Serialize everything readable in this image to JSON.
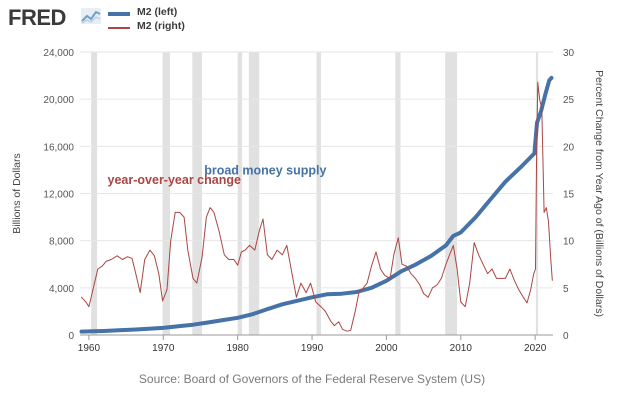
{
  "header": {
    "logo_text": "FRED",
    "logo_icon": "line-chart-icon",
    "legend": [
      {
        "label": "M2 (left)",
        "color": "#4572a7"
      },
      {
        "label": "M2 (right)",
        "color": "#aa4643"
      }
    ]
  },
  "source": "Source: Board of Governors of the Federal Reserve System (US)",
  "chart_data": {
    "type": "line",
    "ylabel": "Billions of Dollars",
    "y2label": "Percent Change from Year Ago of (Billions of Dollars)",
    "xlim": [
      1958.8,
      2022.4
    ],
    "ylim": [
      0,
      24000
    ],
    "y2lim": [
      0,
      30
    ],
    "x_ticks": [
      "1960",
      "1970",
      "1980",
      "1990",
      "2000",
      "2010",
      "2020"
    ],
    "y_ticks": [
      "0",
      "4,000",
      "8,000",
      "12,000",
      "16,000",
      "20,000",
      "24,000"
    ],
    "y2_ticks": [
      "0",
      "5",
      "10",
      "15",
      "20",
      "25",
      "30"
    ],
    "grid": true,
    "recessions": [
      [
        1960.3,
        1961.1
      ],
      [
        1969.9,
        1970.9
      ],
      [
        1973.9,
        1975.2
      ],
      [
        1980.0,
        1980.6
      ],
      [
        1981.5,
        1982.9
      ],
      [
        1990.6,
        1991.2
      ],
      [
        2001.2,
        2001.9
      ],
      [
        2007.9,
        2009.5
      ],
      [
        2020.1,
        2020.4
      ]
    ],
    "annotations": [
      {
        "text": "year-over-year change",
        "x": 1962.5,
        "y": 12800,
        "color": "#aa4643"
      },
      {
        "text": "broad money supply",
        "x": 1975.5,
        "y": 13600,
        "color": "#4572a7"
      }
    ],
    "series": [
      {
        "name": "M2 (left)",
        "axis": "left",
        "color": "#4572a7",
        "points": [
          [
            1959.0,
            290
          ],
          [
            1960,
            305
          ],
          [
            1962,
            340
          ],
          [
            1964,
            400
          ],
          [
            1966,
            460
          ],
          [
            1968,
            530
          ],
          [
            1970,
            600
          ],
          [
            1972,
            740
          ],
          [
            1974,
            870
          ],
          [
            1976,
            1060
          ],
          [
            1978,
            1260
          ],
          [
            1980,
            1460
          ],
          [
            1982,
            1760
          ],
          [
            1984,
            2200
          ],
          [
            1986,
            2600
          ],
          [
            1988,
            2900
          ],
          [
            1990,
            3200
          ],
          [
            1992,
            3450
          ],
          [
            1994,
            3500
          ],
          [
            1996,
            3650
          ],
          [
            1998,
            4000
          ],
          [
            2000,
            4600
          ],
          [
            2002,
            5400
          ],
          [
            2004,
            6000
          ],
          [
            2006,
            6700
          ],
          [
            2008,
            7600
          ],
          [
            2009,
            8400
          ],
          [
            2010,
            8700
          ],
          [
            2012,
            10000
          ],
          [
            2014,
            11500
          ],
          [
            2016,
            13000
          ],
          [
            2018,
            14200
          ],
          [
            2019.9,
            15400
          ],
          [
            2020.25,
            18000
          ],
          [
            2020.8,
            19000
          ],
          [
            2021.4,
            20500
          ],
          [
            2021.9,
            21600
          ],
          [
            2022.2,
            21800
          ]
        ]
      },
      {
        "name": "M2 (right)",
        "axis": "right",
        "color": "#aa4643",
        "points": [
          [
            1959.0,
            4.0
          ],
          [
            1959.6,
            3.5
          ],
          [
            1960.0,
            3.0
          ],
          [
            1960.6,
            5.0
          ],
          [
            1961.2,
            7.0
          ],
          [
            1961.8,
            7.3
          ],
          [
            1962.3,
            7.8
          ],
          [
            1963.0,
            8.0
          ],
          [
            1963.8,
            8.4
          ],
          [
            1964.5,
            8.0
          ],
          [
            1965.2,
            8.3
          ],
          [
            1965.8,
            8.1
          ],
          [
            1966.3,
            6.5
          ],
          [
            1966.9,
            4.5
          ],
          [
            1967.5,
            8.0
          ],
          [
            1968.2,
            9.0
          ],
          [
            1968.8,
            8.4
          ],
          [
            1969.4,
            6.5
          ],
          [
            1969.9,
            3.6
          ],
          [
            1970.5,
            4.8
          ],
          [
            1971.0,
            10.0
          ],
          [
            1971.6,
            13.0
          ],
          [
            1972.2,
            13.0
          ],
          [
            1972.8,
            12.5
          ],
          [
            1973.3,
            9.0
          ],
          [
            1974.0,
            6.0
          ],
          [
            1974.5,
            5.5
          ],
          [
            1975.2,
            8.2
          ],
          [
            1975.8,
            12.5
          ],
          [
            1976.3,
            13.5
          ],
          [
            1976.8,
            13.0
          ],
          [
            1977.5,
            11.0
          ],
          [
            1978.2,
            8.5
          ],
          [
            1978.8,
            8.0
          ],
          [
            1979.5,
            8.0
          ],
          [
            1980.0,
            7.4
          ],
          [
            1980.5,
            8.8
          ],
          [
            1981.0,
            9.0
          ],
          [
            1981.6,
            9.5
          ],
          [
            1982.3,
            9.0
          ],
          [
            1982.9,
            11.0
          ],
          [
            1983.4,
            12.3
          ],
          [
            1984.0,
            8.5
          ],
          [
            1984.6,
            8.0
          ],
          [
            1985.3,
            9.0
          ],
          [
            1986.0,
            8.5
          ],
          [
            1986.6,
            9.5
          ],
          [
            1987.3,
            6.5
          ],
          [
            1987.9,
            4.0
          ],
          [
            1988.5,
            5.5
          ],
          [
            1989.2,
            4.5
          ],
          [
            1989.8,
            5.5
          ],
          [
            1990.5,
            3.5
          ],
          [
            1991.2,
            3.0
          ],
          [
            1991.8,
            2.5
          ],
          [
            1992.5,
            1.5
          ],
          [
            1993.0,
            1.0
          ],
          [
            1993.6,
            1.4
          ],
          [
            1994.1,
            0.6
          ],
          [
            1994.7,
            0.4
          ],
          [
            1995.2,
            0.5
          ],
          [
            1995.8,
            2.5
          ],
          [
            1996.3,
            4.5
          ],
          [
            1996.9,
            5.0
          ],
          [
            1997.4,
            5.5
          ],
          [
            1998.0,
            7.3
          ],
          [
            1998.6,
            8.8
          ],
          [
            1999.2,
            7.0
          ],
          [
            1999.8,
            6.3
          ],
          [
            2000.5,
            6.0
          ],
          [
            2001.0,
            8.5
          ],
          [
            2001.6,
            10.3
          ],
          [
            2002.1,
            7.5
          ],
          [
            2002.7,
            7.3
          ],
          [
            2003.3,
            6.5
          ],
          [
            2003.9,
            6.0
          ],
          [
            2004.5,
            5.3
          ],
          [
            2005.0,
            4.4
          ],
          [
            2005.6,
            4.0
          ],
          [
            2006.2,
            5.0
          ],
          [
            2006.8,
            5.3
          ],
          [
            2007.4,
            6.0
          ],
          [
            2008.0,
            7.5
          ],
          [
            2008.5,
            8.5
          ],
          [
            2009.0,
            9.5
          ],
          [
            2009.5,
            7.0
          ],
          [
            2010.0,
            3.5
          ],
          [
            2010.6,
            3.0
          ],
          [
            2011.2,
            5.5
          ],
          [
            2011.8,
            9.8
          ],
          [
            2012.4,
            8.5
          ],
          [
            2013.0,
            7.5
          ],
          [
            2013.6,
            6.5
          ],
          [
            2014.2,
            7.0
          ],
          [
            2014.8,
            6.0
          ],
          [
            2015.4,
            6.0
          ],
          [
            2016.0,
            6.0
          ],
          [
            2016.6,
            7.0
          ],
          [
            2017.2,
            5.8
          ],
          [
            2017.8,
            4.8
          ],
          [
            2018.4,
            4.0
          ],
          [
            2018.9,
            3.4
          ],
          [
            2019.4,
            4.8
          ],
          [
            2019.8,
            6.5
          ],
          [
            2020.05,
            7.0
          ],
          [
            2020.2,
            19.0
          ],
          [
            2020.35,
            26.8
          ],
          [
            2020.6,
            25.0
          ],
          [
            2020.9,
            24.0
          ],
          [
            2021.2,
            13.0
          ],
          [
            2021.5,
            13.5
          ],
          [
            2021.8,
            12.0
          ],
          [
            2022.1,
            8.0
          ],
          [
            2022.3,
            5.8
          ]
        ]
      }
    ]
  }
}
